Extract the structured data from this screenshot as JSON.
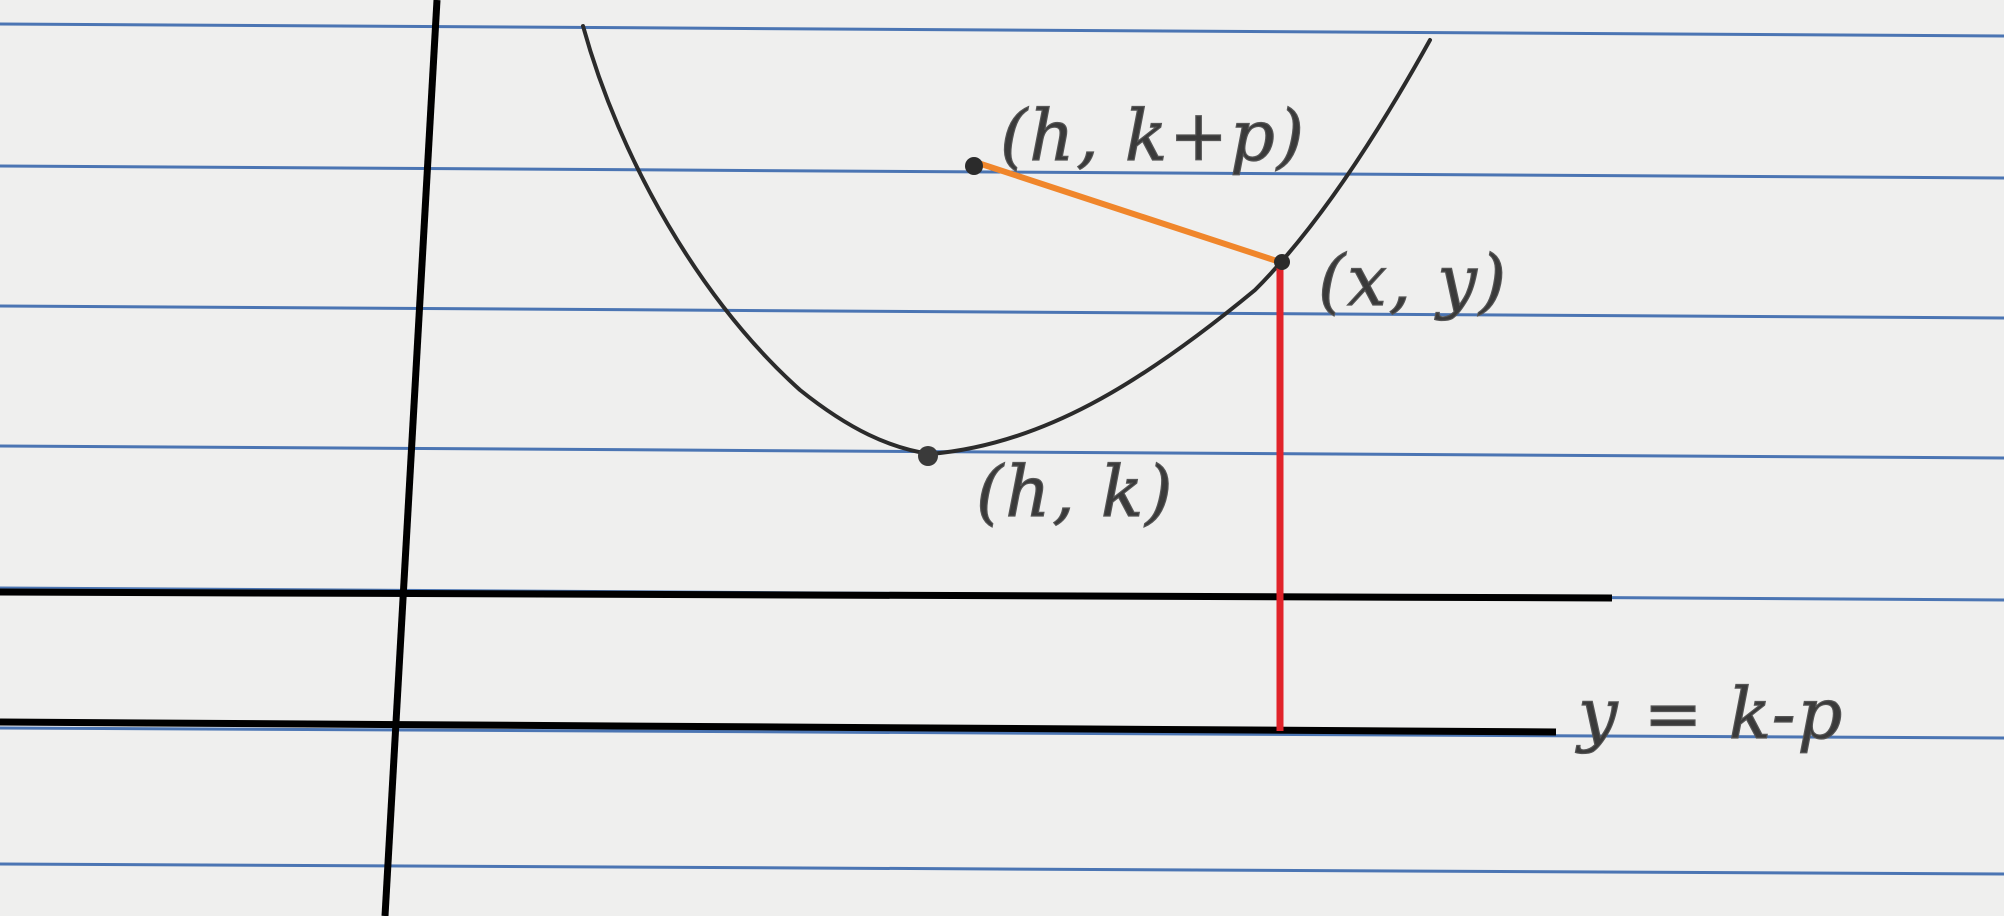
{
  "labels": {
    "focus": "(h, k+p)",
    "curve_point": "(x, y)",
    "vertex": "(h, k)",
    "directrix": "y = k-p"
  },
  "colors": {
    "paper": "#efefee",
    "ruled_line": "#2e5fa8",
    "ink": "#000000",
    "pencil": "#2b2b2b",
    "focus_segment": "#f0862b",
    "directrix_segment": "#e1232a",
    "label_text": "#3a3a3a"
  }
}
